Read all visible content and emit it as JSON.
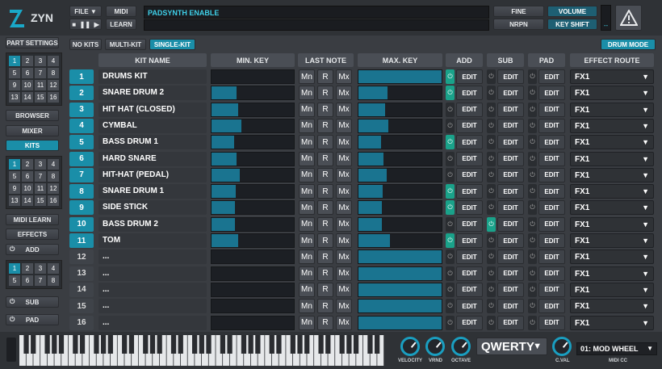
{
  "app": {
    "logo_text": "ZYN"
  },
  "top": {
    "file": "FILE",
    "midi": "MIDI",
    "learn": "LEARN",
    "display_text": "PADSYNTH ENABLE",
    "fine": "FINE",
    "nrpn": "NRPN",
    "volume": "VOLUME",
    "key_shift": "KEY SHIFT",
    "meter_text": "--",
    "warning_icon": "warning-icon"
  },
  "modes": {
    "no_kits": "NO KITS",
    "multi_kit": "MULTI-KIT",
    "single_kit": "SINGLE-KIT",
    "drum_mode": "DRUM MODE"
  },
  "sidebar": {
    "part_settings": "PART SETTINGS",
    "browser": "BROWSER",
    "mixer": "MIXER",
    "kits": "KITS",
    "midi_learn": "MIDI LEARN",
    "effects": "EFFECTS",
    "add": "ADD",
    "sub": "SUB",
    "pad": "PAD",
    "grid1": [
      "1",
      "2",
      "3",
      "4",
      "5",
      "6",
      "7",
      "8",
      "9",
      "10",
      "11",
      "12",
      "13",
      "14",
      "15",
      "16"
    ],
    "grid2": [
      "1",
      "2",
      "3",
      "4",
      "5",
      "6",
      "7",
      "8",
      "9",
      "10",
      "11",
      "12",
      "13",
      "14",
      "15",
      "16"
    ],
    "grid3": [
      "1",
      "2",
      "3",
      "4",
      "5",
      "6",
      "7",
      "8"
    ]
  },
  "table": {
    "headers": {
      "kit_name": "KIT NAME",
      "min_key": "MIN. KEY",
      "last_note": "LAST NOTE",
      "max_key": "MAX. KEY",
      "add": "ADD",
      "sub": "SUB",
      "pad": "PAD",
      "effect_route": "EFFECT ROUTE"
    },
    "mini_labels": [
      "Mn",
      "R",
      "Mx"
    ],
    "edit_label": "EDIT",
    "rows": [
      {
        "n": "1",
        "name": "DRUMS KIT",
        "min": 0.0,
        "max": 1.0,
        "add": true,
        "sub": false,
        "route": "FX1",
        "active": true
      },
      {
        "n": "2",
        "name": "SNARE DRUM 2",
        "min": 0.3,
        "max": 0.35,
        "add": true,
        "sub": false,
        "route": "FX1",
        "active": true
      },
      {
        "n": "3",
        "name": "HIT HAT (CLOSED)",
        "min": 0.32,
        "max": 0.32,
        "add": false,
        "sub": false,
        "route": "FX1",
        "active": true
      },
      {
        "n": "4",
        "name": "CYMBAL",
        "min": 0.36,
        "max": 0.36,
        "add": false,
        "sub": false,
        "route": "FX1",
        "active": true
      },
      {
        "n": "5",
        "name": "BASS DRUM 1",
        "min": 0.27,
        "max": 0.27,
        "add": true,
        "sub": false,
        "route": "FX1",
        "active": true
      },
      {
        "n": "6",
        "name": "HARD SNARE",
        "min": 0.3,
        "max": 0.3,
        "add": false,
        "sub": false,
        "route": "FX1",
        "active": true
      },
      {
        "n": "7",
        "name": "HIT-HAT (PEDAL)",
        "min": 0.34,
        "max": 0.34,
        "add": false,
        "sub": false,
        "route": "FX1",
        "active": true
      },
      {
        "n": "8",
        "name": "SNARE DRUM 1",
        "min": 0.29,
        "max": 0.29,
        "add": true,
        "sub": false,
        "route": "FX1",
        "active": true
      },
      {
        "n": "9",
        "name": "SIDE STICK",
        "min": 0.28,
        "max": 0.28,
        "add": true,
        "sub": false,
        "route": "FX1",
        "active": true
      },
      {
        "n": "10",
        "name": "BASS DRUM 2",
        "min": 0.28,
        "max": 0.28,
        "add": false,
        "sub": true,
        "route": "FX1",
        "active": true
      },
      {
        "n": "11",
        "name": "TOM",
        "min": 0.32,
        "max": 0.38,
        "add": true,
        "sub": false,
        "route": "FX1",
        "active": true
      },
      {
        "n": "12",
        "name": "...",
        "min": 0.0,
        "max": 1.0,
        "add": false,
        "sub": false,
        "route": "FX1",
        "active": false
      },
      {
        "n": "13",
        "name": "...",
        "min": 0.0,
        "max": 1.0,
        "add": false,
        "sub": false,
        "route": "FX1",
        "active": false
      },
      {
        "n": "14",
        "name": "...",
        "min": 0.0,
        "max": 1.0,
        "add": false,
        "sub": false,
        "route": "FX1",
        "active": false
      },
      {
        "n": "15",
        "name": "...",
        "min": 0.0,
        "max": 1.0,
        "add": false,
        "sub": false,
        "route": "FX1",
        "active": false
      },
      {
        "n": "16",
        "name": "...",
        "min": 0.0,
        "max": 1.0,
        "add": false,
        "sub": false,
        "route": "FX1",
        "active": false
      }
    ]
  },
  "bottom": {
    "velocity": "VELOCITY",
    "vrnd": "VRND",
    "octave": "OCTAVE",
    "qwerty": "QWERTY",
    "cval": "C.VAL",
    "midi_cc_value": "01: MOD WHEEL",
    "midi_cc": "MIDI CC"
  },
  "colors": {
    "accent": "#1a8ea8",
    "bg": "#3a3d42",
    "slider_fill": "#1a7490"
  }
}
